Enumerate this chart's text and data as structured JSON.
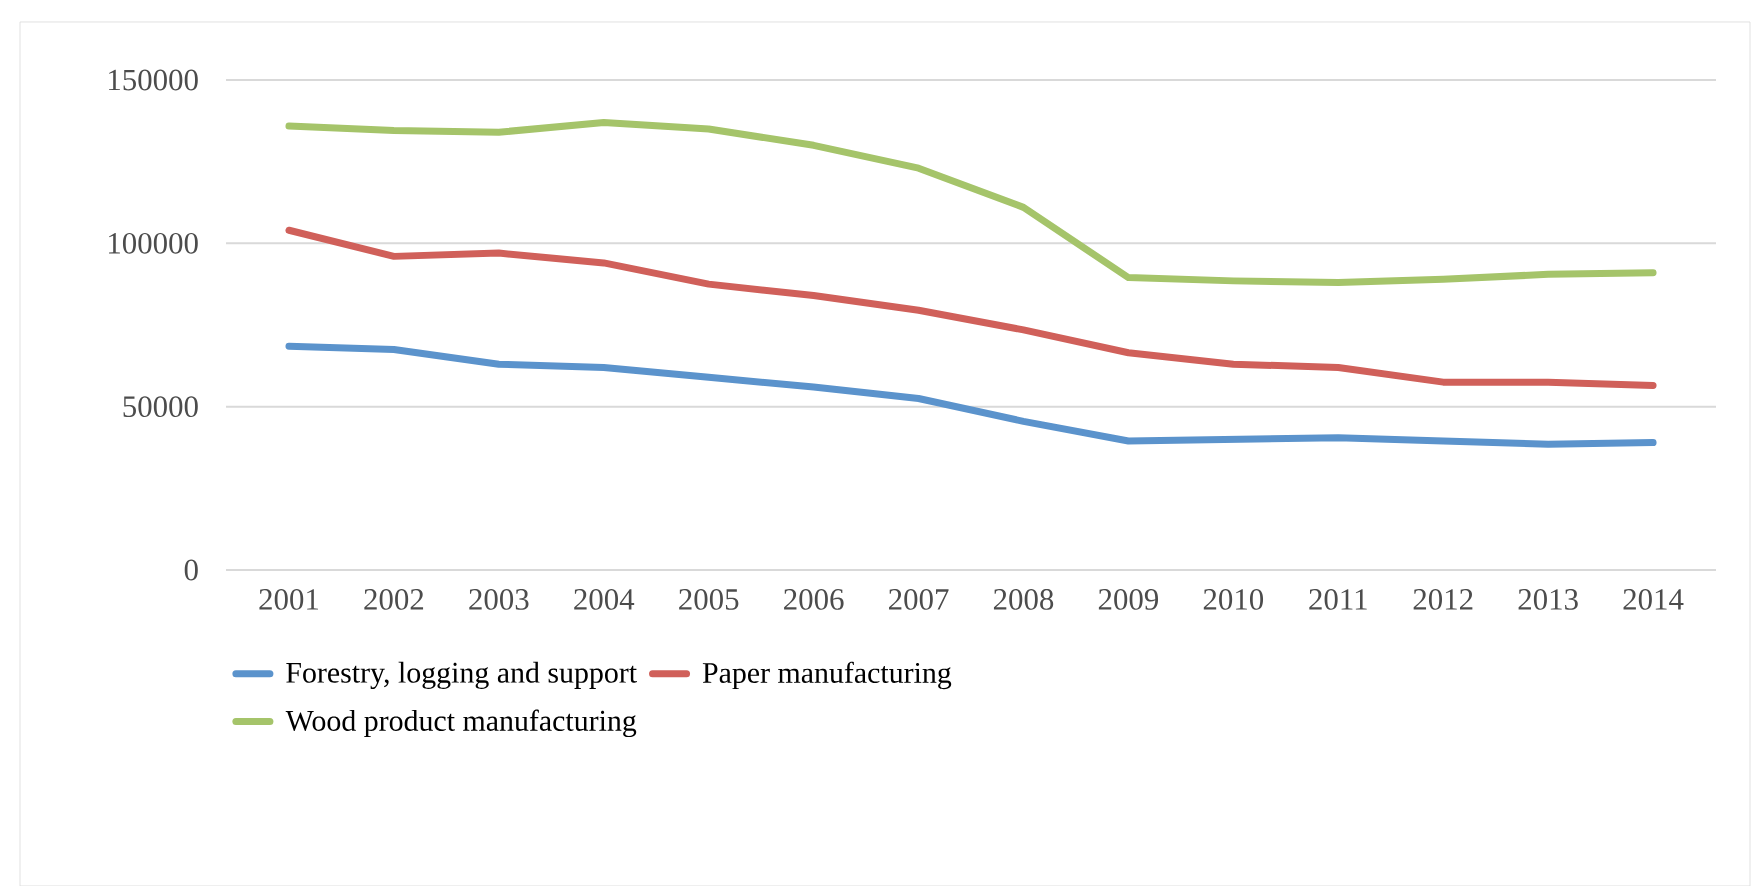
{
  "chart_data": {
    "type": "line",
    "categories": [
      "2001",
      "2002",
      "2003",
      "2004",
      "2005",
      "2006",
      "2007",
      "2008",
      "2009",
      "2010",
      "2011",
      "2012",
      "2013",
      "2014"
    ],
    "series": [
      {
        "name": "Forestry, logging and support",
        "color": "#5b93cc",
        "values": [
          68500,
          67500,
          63000,
          62000,
          59000,
          56000,
          52500,
          45500,
          39500,
          40000,
          40500,
          39500,
          38500,
          39000
        ]
      },
      {
        "name": "Paper manufacturing",
        "color": "#d0605a",
        "values": [
          104000,
          96000,
          97000,
          94000,
          87500,
          84000,
          79500,
          73500,
          66500,
          63000,
          62000,
          57500,
          57500,
          56500
        ]
      },
      {
        "name": "Wood product manufacturing",
        "color": "#a5c46a",
        "values": [
          135900,
          134500,
          134000,
          137000,
          135000,
          130000,
          123000,
          111000,
          89500,
          88500,
          88000,
          89000,
          90500,
          91000
        ]
      }
    ],
    "ylim": [
      0,
      150000
    ],
    "yticks": [
      0,
      50000,
      100000,
      150000
    ],
    "grid": "y",
    "legend": "bottom",
    "marker": "none",
    "line_style": "solid"
  }
}
